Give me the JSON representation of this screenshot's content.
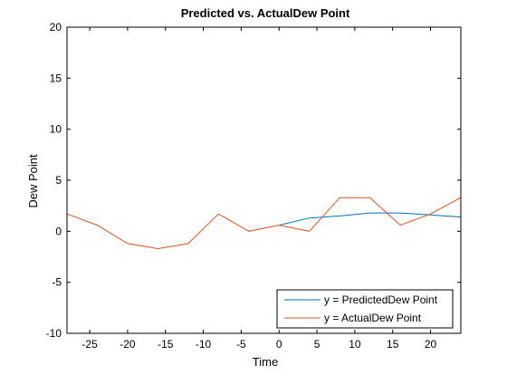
{
  "chart_data": {
    "type": "line",
    "title": "Predicted vs. ActualDew Point",
    "xlabel": "Time",
    "ylabel": "Dew Point",
    "xlim": [
      -28,
      24
    ],
    "ylim": [
      -10,
      20
    ],
    "xticks": [
      -25,
      -20,
      -15,
      -10,
      -5,
      0,
      5,
      10,
      15,
      20
    ],
    "yticks": [
      -10,
      -5,
      0,
      5,
      10,
      15,
      20
    ],
    "grid": false,
    "legend_position": "bottom-right",
    "series": [
      {
        "name": "y = PredictedDew Point",
        "color": "#0072bd",
        "x": [
          0,
          4,
          8,
          12,
          16,
          20,
          24
        ],
        "y": [
          0.6,
          1.3,
          1.5,
          1.8,
          1.8,
          1.6,
          1.4
        ]
      },
      {
        "name": "y = ActualDew Point",
        "color": "#d95319",
        "x": [
          -28,
          -24,
          -20,
          -16,
          -12,
          -8,
          -4,
          0,
          4,
          8,
          12,
          16,
          20,
          24
        ],
        "y": [
          1.7,
          0.6,
          -1.2,
          -1.7,
          -1.2,
          1.7,
          0.0,
          0.6,
          0.0,
          3.3,
          3.3,
          0.6,
          1.7,
          3.3
        ]
      }
    ]
  }
}
